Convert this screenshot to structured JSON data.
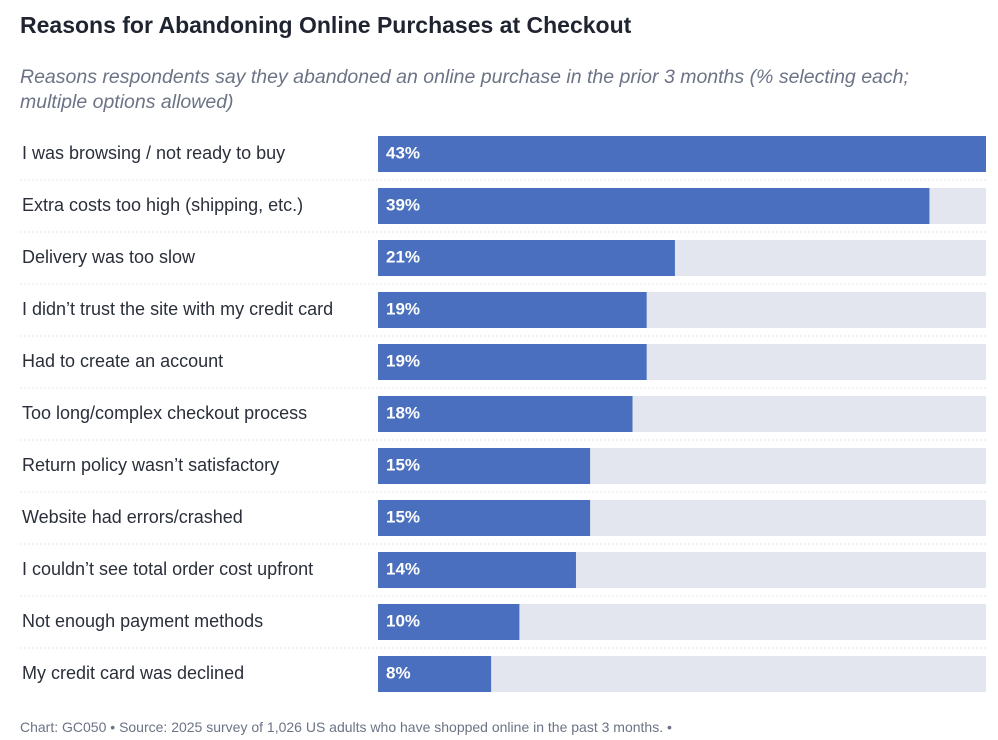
{
  "chart_data": {
    "type": "bar",
    "orientation": "horizontal",
    "title": "Reasons for Abandoning Online Purchases at Checkout",
    "subtitle": "Reasons respondents say they abandoned an online purchase in the prior 3 months (% selecting each; multiple options allowed)",
    "categories": [
      "I was browsing / not ready to buy",
      "Extra costs too high (shipping, etc.)",
      "Delivery was too slow",
      "I didn’t trust the site with my credit card",
      "Had to create an account",
      "Too long/complex checkout process",
      "Return policy wasn’t satisfactory",
      "Website had errors/crashed",
      "I couldn’t see total order cost upfront",
      "Not enough payment methods",
      "My credit card was declined"
    ],
    "values": [
      43,
      39,
      21,
      19,
      19,
      18,
      15,
      15,
      14,
      10,
      8
    ],
    "value_labels": [
      "43%",
      "39%",
      "21%",
      "19%",
      "19%",
      "18%",
      "15%",
      "15%",
      "14%",
      "10%",
      "8%"
    ],
    "color": "#4a6fbe",
    "xlim": [
      0,
      43
    ],
    "footer": [
      "Chart: GC050",
      "Source: 2025 survey of 1,026 US adults who have shopped online in the past 3 months."
    ]
  }
}
